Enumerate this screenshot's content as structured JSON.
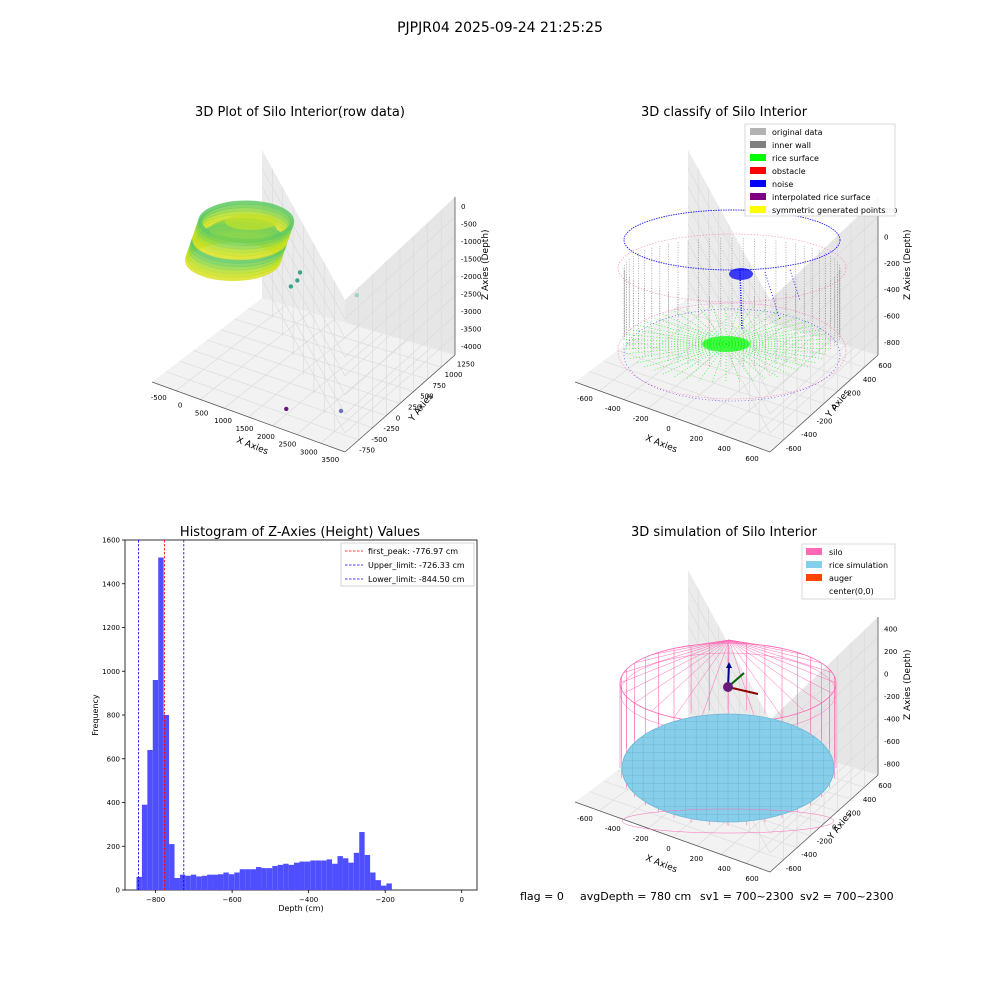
{
  "figure": {
    "suptitle": "PJPJR04 2025-09-24 21:25:25",
    "footer": {
      "flag": "flag = 0",
      "avg": "avgDepth = 780 cm",
      "sv1": "sv1 = 700~2300",
      "sv2": "sv2 = 700~2300"
    }
  },
  "colors": {
    "rice_surface": "#00ff00",
    "noise": "#0000ff",
    "inner_wall": "#808080",
    "original_data": "#b3b3b3",
    "obstacle": "#ff0000",
    "interpolated": "#800080",
    "symmetric": "#ffff00",
    "silo": "#ff69b4",
    "rice_sim": "#87ceeb",
    "auger": "#ff4500",
    "hist_bar": "#4f4fff"
  },
  "chart_data": [
    {
      "type": "scatter",
      "title": "3D Plot of Silo Interior(row data)",
      "xlabel": "X Axies",
      "ylabel": "Y Axies",
      "zlabel": "Z Axies (Depth)",
      "x_ticks": [
        "-500",
        "0",
        "500",
        "1000",
        "1500",
        "2000",
        "2500",
        "3000",
        "3500"
      ],
      "y_ticks": [
        "-750",
        "-500",
        "-250",
        "0",
        "250",
        "500",
        "750",
        "1000",
        "1250"
      ],
      "z_ticks": [
        "0",
        "-500",
        "-1000",
        "-1500",
        "-2000",
        "-2500",
        "-3000",
        "-3500",
        "-4000"
      ],
      "outliers": [
        {
          "x": 450,
          "y": 1100,
          "z": -2700,
          "color": "#3aa489"
        },
        {
          "x": 500,
          "y": 1000,
          "z": -2800,
          "color": "#3aa489"
        },
        {
          "x": 250,
          "y": 1100,
          "z": -3200,
          "color": "#3aa489"
        },
        {
          "x": 3100,
          "y": -200,
          "z": -600,
          "color": "#9ed6b7"
        },
        {
          "x": 3300,
          "y": -700,
          "z": -3300,
          "color": "#6a75b5"
        },
        {
          "x": 2000,
          "y": -600,
          "z": -4000,
          "color": "#6a1b7a"
        }
      ]
    },
    {
      "type": "scatter",
      "title": "3D classify of Silo Interior",
      "xlabel": "X Axies",
      "ylabel": "Y Axies",
      "zlabel": "Z Axies (Depth)",
      "x_ticks": [
        "-600",
        "-400",
        "-200",
        "0",
        "200",
        "400",
        "600"
      ],
      "y_ticks": [
        "-600",
        "-400",
        "-200",
        "0",
        "200",
        "400",
        "600"
      ],
      "z_ticks": [
        "200",
        "0",
        "-200",
        "-400",
        "-600",
        "-800"
      ],
      "legend": [
        "original data",
        "inner wall",
        "rice surface",
        "obstacle",
        "noise",
        "interpolated rice surface",
        "symmetric generated points"
      ]
    },
    {
      "type": "bar",
      "title": "Histogram of Z-Axies (Height) Values",
      "xlabel": "Depth (cm)",
      "ylabel": "Frequency",
      "xlim": [
        -880,
        40
      ],
      "ylim": [
        0,
        1600
      ],
      "x_ticks": [
        -800,
        -600,
        -400,
        -200,
        0
      ],
      "y_ticks": [
        0,
        200,
        400,
        600,
        800,
        1000,
        1200,
        1400,
        1600
      ],
      "bin_start": -850,
      "bin_width": 14.2,
      "values": [
        60,
        390,
        640,
        960,
        1520,
        800,
        210,
        55,
        70,
        65,
        70,
        62,
        65,
        70,
        70,
        72,
        80,
        72,
        80,
        95,
        95,
        95,
        105,
        100,
        100,
        110,
        115,
        120,
        115,
        125,
        130,
        130,
        135,
        135,
        135,
        140,
        120,
        155,
        145,
        125,
        170,
        265,
        160,
        80,
        45,
        20,
        30
      ],
      "lines": [
        {
          "label": "first_peak: -776.97 cm",
          "value": -776.97,
          "color": "#ff0000"
        },
        {
          "label": "Upper_limit: -726.33 cm",
          "value": -726.33,
          "color": "#0000ff"
        },
        {
          "label": "Lower_limit: -844.50 cm",
          "value": -844.5,
          "color": "#0000ff"
        }
      ]
    },
    {
      "type": "scatter",
      "title": "3D simulation of Silo Interior",
      "xlabel": "X Axies",
      "ylabel": "Y Axies",
      "zlabel": "Z Axies (Depth)",
      "x_ticks": [
        "-600",
        "-400",
        "-200",
        "0",
        "200",
        "400",
        "600"
      ],
      "y_ticks": [
        "-600",
        "-400",
        "-200",
        "0",
        "200",
        "400",
        "600"
      ],
      "z_ticks": [
        "400",
        "200",
        "0",
        "-200",
        "-400",
        "-600",
        "-800"
      ],
      "legend": [
        "silo",
        "rice simulation",
        "auger",
        "center(0,0)"
      ]
    }
  ]
}
